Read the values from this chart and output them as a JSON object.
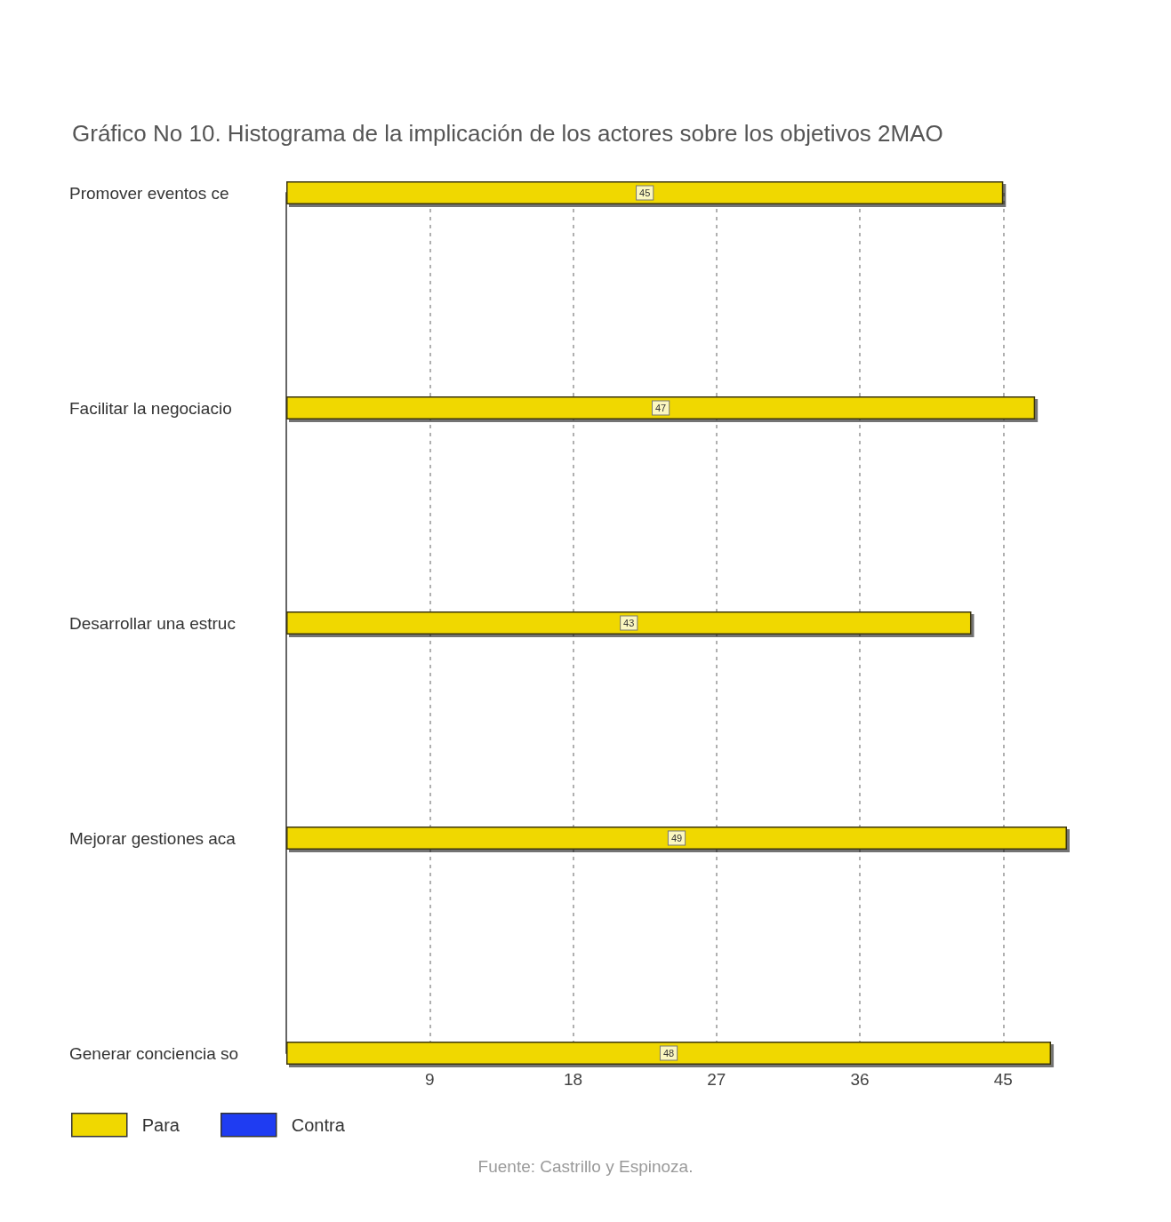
{
  "chart_data": {
    "type": "bar",
    "orientation": "horizontal",
    "title": "Gráfico No 10. Histograma de la implicación de los actores sobre los objetivos 2MAO",
    "categories": [
      "Promover eventos ce",
      "Facilitar la negociacio",
      "Desarrollar una estruc",
      "Mejorar gestiones aca",
      "Generar conciencia so"
    ],
    "series": [
      {
        "name": "Para",
        "color": "#f0d800",
        "values": [
          45,
          47,
          43,
          49,
          48
        ],
        "value_labels": [
          "45",
          "47",
          "43",
          "49",
          "48"
        ]
      },
      {
        "name": "Contra",
        "color": "#1f3cf2",
        "values": [
          null,
          null,
          null,
          null,
          null
        ]
      }
    ],
    "xlim": [
      0,
      49
    ],
    "xticks": [
      9,
      18,
      27,
      36,
      45
    ],
    "grid": "x",
    "legend": "bottom left",
    "annotations": [
      "Fuente: Castrillo y Espinoza."
    ]
  }
}
